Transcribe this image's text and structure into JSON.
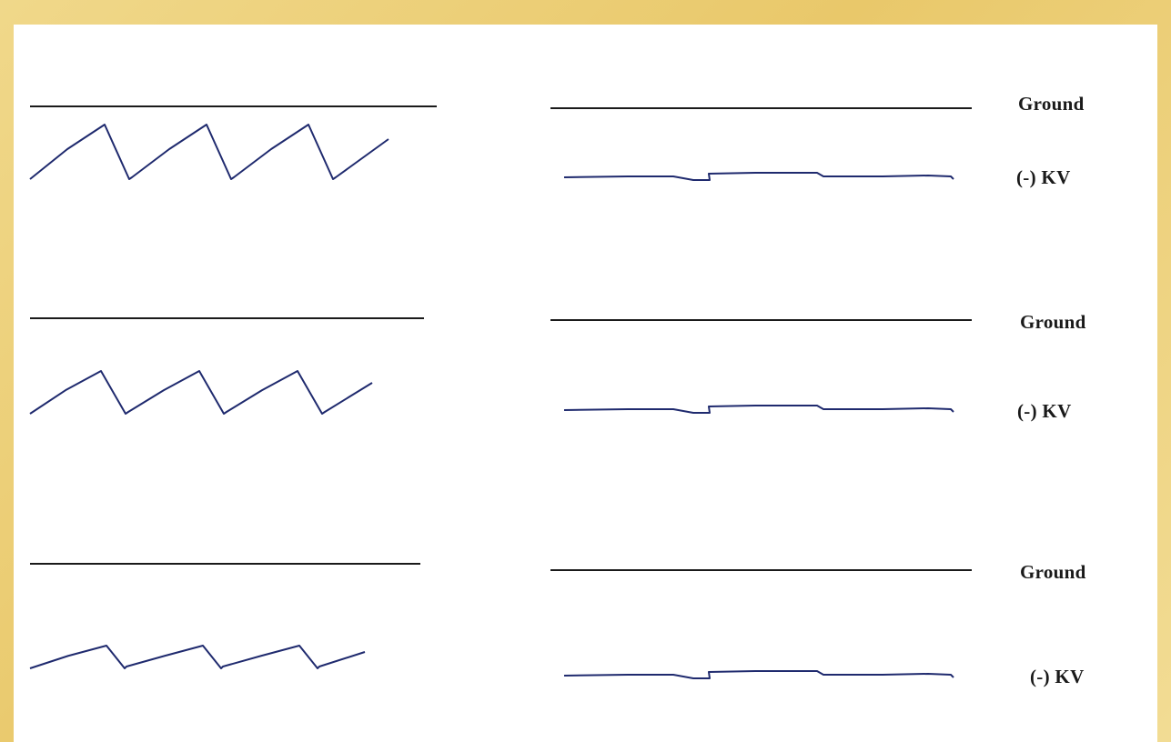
{
  "rows": [
    {
      "ground_label": "Ground",
      "kv_label": "(-) KV",
      "sawtooth_teeth": 3
    },
    {
      "ground_label": "Ground",
      "kv_label": "(-) KV",
      "sawtooth_teeth": 3
    },
    {
      "ground_label": "Ground",
      "kv_label": "(-) KV",
      "sawtooth_teeth": 3
    }
  ],
  "colors": {
    "background": "#ecd07a",
    "panel": "#ffffff",
    "reference_line": "#1a1a1a",
    "waveform": "#1f2a6e"
  }
}
